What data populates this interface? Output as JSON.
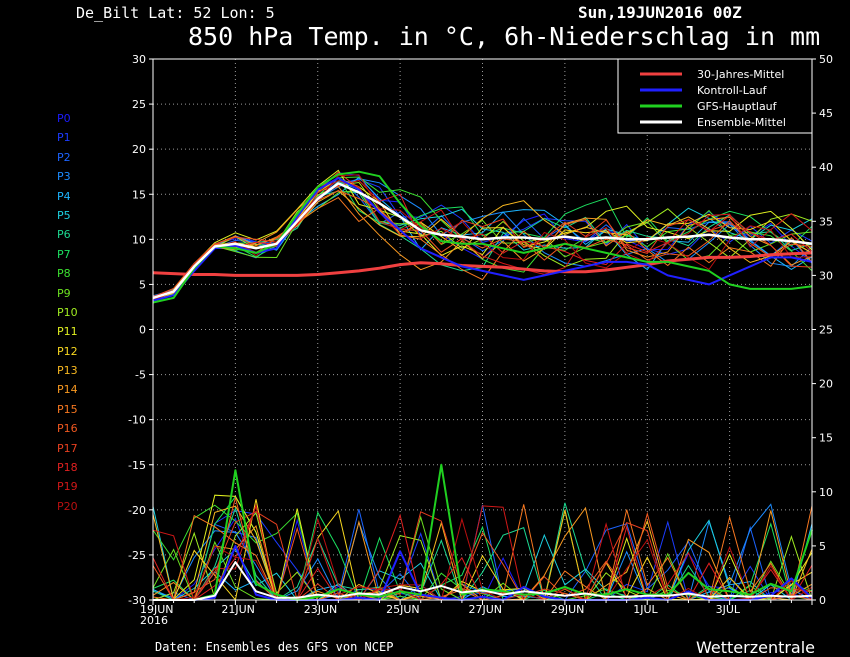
{
  "header": {
    "station": "De_Bilt   Lat: 52  Lon: 5",
    "run_time": "Sun,19JUN2016 00Z",
    "title": "850 hPa Temp. in °C, 6h-Niederschlag in mm"
  },
  "footer": {
    "source": "Daten: Ensembles des GFS von NCEP",
    "brand": "Wetterzentrale"
  },
  "members": [
    {
      "label": "P0",
      "color": "#1c1cff"
    },
    {
      "label": "P1",
      "color": "#1c3cff"
    },
    {
      "label": "P2",
      "color": "#1c64ff"
    },
    {
      "label": "P3",
      "color": "#1c8cff"
    },
    {
      "label": "P4",
      "color": "#1cb4ff"
    },
    {
      "label": "P5",
      "color": "#1cd0e0"
    },
    {
      "label": "P6",
      "color": "#1cd890"
    },
    {
      "label": "P7",
      "color": "#1ce060"
    },
    {
      "label": "P8",
      "color": "#3ce030"
    },
    {
      "label": "P9",
      "color": "#6ce020"
    },
    {
      "label": "P10",
      "color": "#a0ec20"
    },
    {
      "label": "P11",
      "color": "#e0f020"
    },
    {
      "label": "P12",
      "color": "#f8d820"
    },
    {
      "label": "P13",
      "color": "#f8b820"
    },
    {
      "label": "P14",
      "color": "#f89820"
    },
    {
      "label": "P15",
      "color": "#f87820"
    },
    {
      "label": "P16",
      "color": "#f05820"
    },
    {
      "label": "P17",
      "color": "#e84020"
    },
    {
      "label": "P18",
      "color": "#e02020"
    },
    {
      "label": "P19",
      "color": "#d01818"
    },
    {
      "label": "P20",
      "color": "#b81010"
    }
  ],
  "chart_data": {
    "type": "line",
    "x_labels": [
      "19JUN\n2016",
      "21JUN",
      "23JUN",
      "25JUN",
      "27JUN",
      "29JUN",
      "1JUL",
      "3JUL"
    ],
    "x_range_days": [
      0,
      16
    ],
    "y_left": {
      "min": -30,
      "max": 30,
      "ticks": [
        30,
        25,
        20,
        15,
        10,
        5,
        0,
        -5,
        -10,
        -15,
        -20,
        -25,
        -30
      ]
    },
    "y_right": {
      "min": 0,
      "max": 50,
      "ticks": [
        50,
        45,
        40,
        35,
        30,
        25,
        20,
        15,
        10,
        5,
        0
      ]
    },
    "grid": true,
    "legend_position": "top-right",
    "legend": [
      {
        "name": "30-Jahres-Mittel",
        "color": "#f04040"
      },
      {
        "name": "Kontroll-Lauf",
        "color": "#2020ff"
      },
      {
        "name": "GFS-Hauptlauf",
        "color": "#20d020"
      },
      {
        "name": "Ensemble-Mittel",
        "color": "#ffffff"
      }
    ],
    "series_temp": {
      "x_days": [
        0,
        0.5,
        1,
        1.5,
        2,
        2.5,
        3,
        3.5,
        4,
        4.5,
        5,
        5.5,
        6,
        6.5,
        7,
        7.5,
        8,
        8.5,
        9,
        9.5,
        10,
        10.5,
        11,
        11.5,
        12,
        12.5,
        13,
        13.5,
        14,
        14.5,
        15,
        15.5,
        16
      ],
      "climatology": [
        6.3,
        6.2,
        6.1,
        6.1,
        6.0,
        6.0,
        6.0,
        6.0,
        6.1,
        6.3,
        6.5,
        6.8,
        7.2,
        7.4,
        7.3,
        7.1,
        7.0,
        6.9,
        6.7,
        6.5,
        6.4,
        6.4,
        6.6,
        6.9,
        7.2,
        7.6,
        7.8,
        8.0,
        8.0,
        8.1,
        8.3,
        8.4,
        8.5
      ],
      "ensemble_mean": [
        3.5,
        4.2,
        7.0,
        9.2,
        9.5,
        9.0,
        9.5,
        12.0,
        14.5,
        16.2,
        15.2,
        14.0,
        12.5,
        11.0,
        10.5,
        10.3,
        10.0,
        10.2,
        10.2,
        10.0,
        10.3,
        10.0,
        10.2,
        10.0,
        10.0,
        10.2,
        10.3,
        10.5,
        10.2,
        10.0,
        10.0,
        9.8,
        9.5
      ],
      "control": [
        3.2,
        3.8,
        6.5,
        9.0,
        9.3,
        8.5,
        9.0,
        12.5,
        15.5,
        16.8,
        15.5,
        13.0,
        11.0,
        9.0,
        8.0,
        7.0,
        6.5,
        6.0,
        5.5,
        6.0,
        6.5,
        7.0,
        7.5,
        7.5,
        7.2,
        6.0,
        5.5,
        5.0,
        6.0,
        7.0,
        8.0,
        8.0,
        7.5
      ],
      "gfs_main": [
        3.0,
        3.5,
        6.8,
        9.2,
        9.0,
        8.5,
        9.5,
        12.8,
        15.8,
        17.2,
        17.5,
        17.0,
        14.0,
        11.5,
        9.8,
        9.5,
        9.5,
        9.0,
        8.5,
        9.0,
        9.5,
        9.0,
        8.5,
        8.0,
        7.5,
        7.5,
        7.0,
        6.5,
        5.0,
        4.5,
        4.5,
        4.5,
        4.8
      ]
    },
    "series_precip": {
      "x_days": [
        0,
        0.5,
        1,
        1.5,
        2,
        2.5,
        3,
        3.5,
        4,
        4.5,
        5,
        5.5,
        6,
        6.5,
        7,
        7.5,
        8,
        8.5,
        9,
        9.5,
        10,
        10.5,
        11,
        11.5,
        12,
        12.5,
        13,
        13.5,
        14,
        14.5,
        15,
        15.5,
        16
      ],
      "ensemble_mean": [
        0,
        0,
        0,
        0.4,
        3.5,
        0.8,
        0.2,
        0.2,
        0.5,
        0.3,
        0.6,
        0.5,
        1.2,
        0.8,
        1.3,
        0.7,
        0.9,
        0.5,
        0.8,
        0.6,
        0.4,
        0.6,
        0.3,
        0.3,
        0.4,
        0.4,
        0.6,
        0.3,
        0.4,
        0.3,
        0.4,
        0.3,
        0.4
      ],
      "control": [
        0,
        0,
        0,
        0.2,
        5.0,
        0.5,
        0,
        0,
        0,
        0,
        0.2,
        0,
        4.5,
        0.5,
        0.2,
        0,
        0.3,
        0,
        1.2,
        0.3,
        0,
        0,
        0,
        0,
        0.2,
        0,
        0.8,
        0,
        0,
        0,
        0.4,
        2.0,
        0.2
      ],
      "gfs_main": [
        0,
        0,
        0,
        0.5,
        12.0,
        1.5,
        0.5,
        0,
        0.3,
        1.0,
        0.5,
        0.3,
        0.8,
        0.5,
        12.5,
        0.5,
        1.0,
        0.8,
        0.5,
        0.6,
        1.2,
        0.5,
        0.5,
        1.0,
        0.5,
        0.5,
        2.5,
        1.0,
        0.8,
        0.5,
        1.5,
        0.8,
        6.5
      ]
    }
  }
}
